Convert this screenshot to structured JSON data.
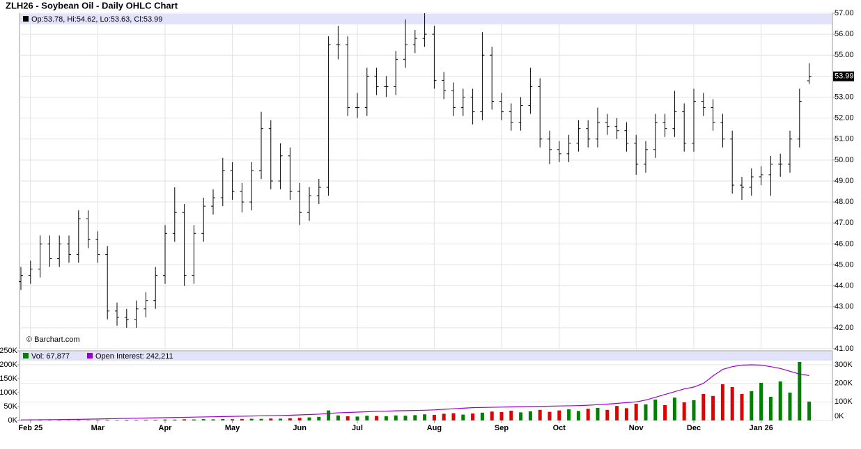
{
  "chart_data": [
    {
      "type": "ohlc",
      "title": "ZLH26 - Soybean Oil - Daily OHLC Chart",
      "info_label": "Op:53.78, Hi:54.62, Lo:53.63, Cl:53.99",
      "watermark": "© Barchart.com",
      "color": "#000000",
      "last_label": "53.99",
      "open": [
        44.2,
        44.5,
        44.8,
        46.0,
        45.3,
        46.0,
        45.5,
        47.2,
        46.2,
        45.5,
        42.8,
        42.5,
        42.4,
        42.9,
        43.3,
        44.5,
        46.5,
        47.5,
        44.5,
        46.5,
        47.8,
        48.2,
        49.5,
        48.5,
        48.0,
        49.5,
        51.5,
        49.0,
        50.2,
        48.5,
        47.5,
        48.3,
        48.7,
        55.5,
        55.5,
        52.5,
        52.5,
        54.0,
        53.5,
        53.5,
        54.8,
        55.5,
        55.8,
        56.0,
        53.8,
        53.3,
        52.5,
        53.0,
        52.3,
        55.0,
        52.8,
        52.3,
        51.8,
        52.6,
        53.5,
        51.0,
        50.5,
        50.3,
        50.8,
        51.5,
        51.0,
        51.8,
        51.6,
        51.4,
        50.8,
        49.8,
        50.5,
        51.8,
        51.5,
        52.3,
        50.8,
        52.8,
        52.5,
        51.8,
        51.0,
        48.8,
        48.7,
        49.2,
        49.3,
        49.8,
        49.8,
        51.0,
        53.78
      ],
      "high": [
        44.9,
        45.2,
        46.4,
        46.4,
        46.4,
        46.4,
        47.6,
        47.6,
        46.6,
        45.9,
        43.2,
        42.9,
        43.3,
        43.7,
        44.9,
        46.9,
        48.7,
        47.9,
        46.9,
        48.2,
        48.6,
        50.1,
        49.9,
        48.9,
        49.9,
        52.3,
        51.9,
        50.8,
        50.6,
        48.9,
        48.7,
        49.1,
        55.9,
        56.4,
        55.9,
        53.2,
        54.4,
        54.4,
        54.0,
        55.2,
        56.7,
        56.2,
        57.0,
        56.4,
        54.2,
        53.7,
        53.4,
        53.4,
        56.1,
        55.4,
        53.2,
        52.7,
        53.0,
        54.4,
        53.9,
        51.4,
        50.9,
        51.2,
        51.9,
        51.9,
        52.5,
        52.2,
        52.0,
        51.8,
        51.2,
        50.9,
        52.2,
        52.2,
        53.3,
        52.7,
        53.4,
        53.2,
        52.9,
        52.2,
        51.4,
        49.2,
        49.6,
        49.7,
        50.2,
        50.3,
        51.4,
        53.4,
        54.62
      ],
      "low": [
        43.8,
        44.1,
        44.4,
        44.9,
        44.9,
        45.1,
        45.1,
        45.8,
        45.1,
        42.4,
        42.1,
        42.0,
        42.0,
        42.5,
        42.9,
        44.1,
        46.1,
        44.0,
        44.1,
        46.1,
        47.4,
        47.8,
        48.1,
        47.5,
        47.6,
        49.1,
        48.6,
        48.6,
        48.1,
        46.9,
        47.1,
        47.9,
        48.3,
        54.8,
        52.1,
        52.0,
        52.1,
        53.1,
        53.0,
        53.1,
        54.4,
        55.1,
        55.4,
        53.4,
        52.9,
        52.1,
        52.1,
        51.7,
        51.9,
        52.4,
        51.9,
        51.4,
        51.4,
        52.2,
        50.6,
        49.8,
        49.9,
        49.9,
        50.4,
        50.6,
        50.6,
        51.2,
        51.0,
        50.4,
        49.3,
        49.4,
        50.1,
        51.1,
        51.1,
        50.4,
        50.4,
        52.1,
        51.4,
        50.6,
        48.4,
        48.1,
        48.3,
        48.8,
        48.3,
        49.2,
        49.4,
        50.6,
        53.63
      ],
      "close": [
        44.5,
        44.8,
        46.0,
        45.3,
        46.0,
        45.5,
        47.2,
        46.2,
        45.5,
        42.8,
        42.5,
        42.4,
        42.9,
        43.3,
        44.5,
        46.5,
        47.5,
        44.5,
        46.5,
        47.8,
        48.2,
        49.5,
        48.5,
        48.0,
        49.5,
        51.5,
        49.0,
        50.2,
        48.5,
        47.5,
        48.3,
        48.7,
        55.5,
        55.5,
        52.5,
        52.5,
        54.0,
        53.5,
        53.5,
        54.8,
        55.5,
        55.8,
        56.0,
        53.8,
        53.3,
        52.5,
        53.0,
        52.3,
        55.0,
        52.8,
        52.3,
        51.8,
        52.6,
        53.5,
        51.0,
        50.5,
        50.3,
        50.8,
        51.5,
        51.0,
        51.8,
        51.6,
        51.4,
        50.8,
        49.8,
        50.5,
        51.8,
        51.5,
        52.3,
        50.8,
        52.8,
        52.5,
        51.8,
        51.0,
        48.8,
        48.7,
        49.2,
        49.3,
        49.8,
        49.8,
        51.0,
        52.8,
        53.99
      ],
      "ylim": [
        41,
        57
      ],
      "yticks": [
        {
          "value": 41,
          "label": "41.00"
        },
        {
          "value": 42,
          "label": "42.00"
        },
        {
          "value": 43,
          "label": "43.00"
        },
        {
          "value": 44,
          "label": "44.00"
        },
        {
          "value": 45,
          "label": "45.00"
        },
        {
          "value": 46,
          "label": "46.00"
        },
        {
          "value": 47,
          "label": "47.00"
        },
        {
          "value": 48,
          "label": "48.00"
        },
        {
          "value": 49,
          "label": "49.00"
        },
        {
          "value": 50,
          "label": "50.00"
        },
        {
          "value": 51,
          "label": "51.00"
        },
        {
          "value": 52,
          "label": "52.00"
        },
        {
          "value": 53,
          "label": "53.00"
        },
        {
          "value": 54,
          "label": "54.00"
        },
        {
          "value": 55,
          "label": "55.00"
        },
        {
          "value": 56,
          "label": "56.00"
        },
        {
          "value": 57,
          "label": "57.00"
        }
      ],
      "grid": true
    },
    {
      "type": "bar",
      "up_color": "#008000",
      "down_color": "#e00000",
      "series": [
        {
          "name": "Vol: 67,877",
          "color": "#008000",
          "values": [
            1200,
            900,
            1500,
            1100,
            1800,
            1300,
            2000,
            1500,
            1700,
            2200,
            1900,
            2500,
            2100,
            2800,
            2400,
            3500,
            3100,
            4200,
            3600,
            4800,
            4100,
            5200,
            4600,
            5500,
            6200,
            5800,
            7000,
            6500,
            7800,
            9500,
            11000,
            13000,
            36000,
            18000,
            15000,
            14000,
            17000,
            16000,
            15000,
            18000,
            17000,
            19000,
            22000,
            20000,
            24000,
            26000,
            21000,
            25000,
            28000,
            32000,
            30000,
            35000,
            29000,
            33000,
            38000,
            31000,
            36000,
            40000,
            34000,
            42000,
            45000,
            38000,
            52000,
            44000,
            60000,
            58000,
            75000,
            55000,
            82000,
            65000,
            73000,
            95000,
            88000,
            130000,
            120000,
            95000,
            105000,
            135000,
            85000,
            140000,
            100000,
            210000,
            67877
          ]
        },
        {
          "name": "Open Interest: 242,211",
          "color": "#9900cc",
          "axis": "y2",
          "values": [
            3000,
            3500,
            4000,
            4500,
            5000,
            5500,
            6000,
            7000,
            8000,
            9000,
            10000,
            11000,
            12000,
            13000,
            14000,
            15000,
            16000,
            17000,
            18000,
            19000,
            20000,
            21000,
            22000,
            23000,
            24000,
            25000,
            26000,
            27000,
            28000,
            30000,
            32000,
            34000,
            38000,
            41000,
            43000,
            45000,
            47000,
            49000,
            50000,
            52000,
            53000,
            54000,
            55000,
            57000,
            60000,
            63000,
            66000,
            69000,
            70000,
            71000,
            72000,
            73000,
            74000,
            75000,
            76000,
            77000,
            78000,
            79000,
            80000,
            82000,
            85000,
            88000,
            92000,
            96000,
            100000,
            110000,
            125000,
            140000,
            155000,
            170000,
            180000,
            200000,
            240000,
            275000,
            290000,
            298000,
            300000,
            298000,
            290000,
            280000,
            265000,
            250000,
            242211
          ]
        }
      ],
      "ylim": [
        0,
        250000
      ],
      "yticks": [
        {
          "value": 0,
          "label": "0K"
        },
        {
          "value": 50000,
          "label": "50K"
        },
        {
          "value": 100000,
          "label": "100K"
        },
        {
          "value": 150000,
          "label": "150K"
        },
        {
          "value": 200000,
          "label": "200K"
        },
        {
          "value": 250000,
          "label": "250K"
        }
      ],
      "y2lim": [
        0,
        375000
      ],
      "y2ticks": [
        {
          "value": 0,
          "label": "0K"
        },
        {
          "value": 100000,
          "label": "100K"
        },
        {
          "value": 200000,
          "label": "200K"
        },
        {
          "value": 300000,
          "label": "300K"
        }
      ],
      "xticks": [
        {
          "value": 1,
          "label": "Feb 25"
        },
        {
          "value": 8,
          "label": "Mar"
        },
        {
          "value": 15,
          "label": "Apr"
        },
        {
          "value": 22,
          "label": "May"
        },
        {
          "value": 29,
          "label": "Jun"
        },
        {
          "value": 35,
          "label": "Jul"
        },
        {
          "value": 43,
          "label": "Aug"
        },
        {
          "value": 50,
          "label": "Sep"
        },
        {
          "value": 56,
          "label": "Oct"
        },
        {
          "value": 64,
          "label": "Nov"
        },
        {
          "value": 70,
          "label": "Dec"
        },
        {
          "value": 77,
          "label": "Jan 26"
        }
      ]
    }
  ]
}
